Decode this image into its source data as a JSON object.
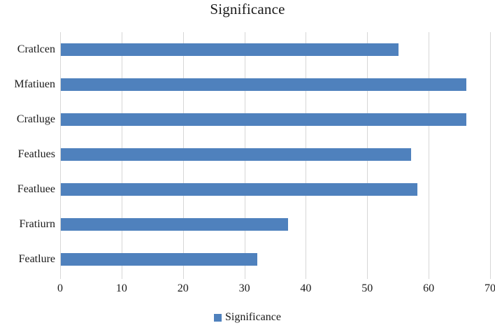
{
  "chart_data": {
    "type": "bar",
    "orientation": "horizontal",
    "title": "Significance",
    "categories": [
      "Cratlcen",
      "Mfatiuen",
      "Cratluge",
      "Featlues",
      "Featluee",
      "Fratiurn",
      "Featlure"
    ],
    "series": [
      {
        "name": "Significance",
        "values": [
          55,
          66,
          66,
          57,
          58,
          37,
          32
        ]
      }
    ],
    "xlabel": "",
    "ylabel": "",
    "xlim": [
      0,
      70
    ],
    "x_ticks": [
      0,
      10,
      20,
      30,
      40,
      50,
      60,
      70
    ],
    "grid": "vertical-only",
    "legend_position": "bottom-center",
    "colors": {
      "bar": "#4f81bd",
      "gridline": "#d6d6d6",
      "text": "#1a1a1a",
      "background": "#ffffff"
    }
  }
}
